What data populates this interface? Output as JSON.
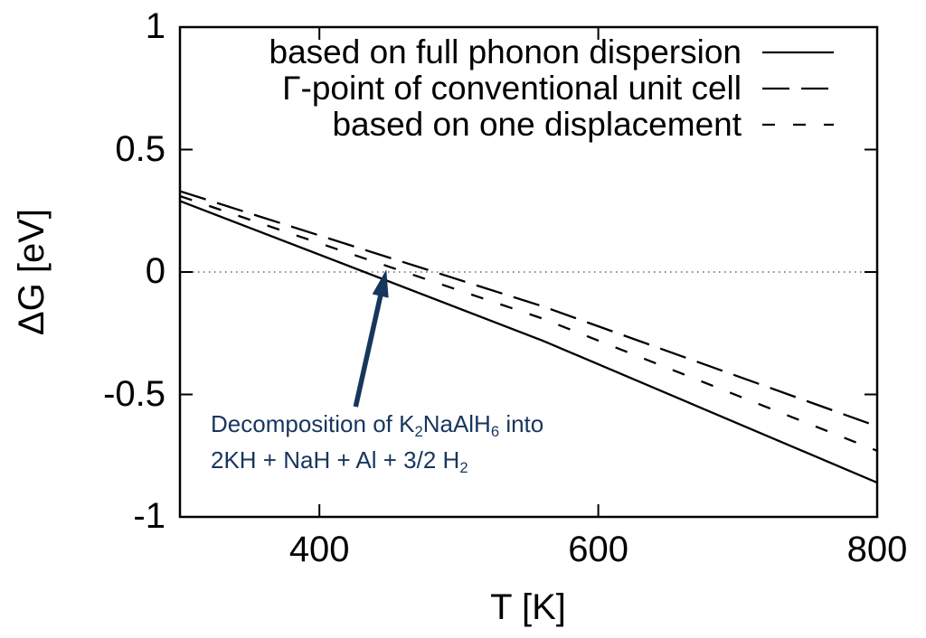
{
  "figure": {
    "background": "#ffffff",
    "axis_color": "#000000",
    "zero_line_color": "#444444"
  },
  "chart_data": {
    "type": "line",
    "title": "",
    "xlabel": "T [K]",
    "ylabel": "ΔG [eV]",
    "xlim": [
      300,
      800
    ],
    "ylim": [
      -1,
      1
    ],
    "xticks": [
      400,
      600,
      800
    ],
    "xtick_labels": [
      "400",
      "600",
      "800"
    ],
    "yticks": [
      1,
      0.5,
      0,
      -0.5,
      -1
    ],
    "ytick_labels": [
      "1",
      "0.5",
      "0",
      "-0.5",
      "-1"
    ],
    "grid": "dotted horizontal line at ΔG = 0 only",
    "legend_position": "top right inside plot, right-aligned labels with line samples",
    "series": [
      {
        "name": "based on full phonon dispersion",
        "style": "solid",
        "color": "#000000",
        "x": [
          300,
          560,
          800
        ],
        "y": [
          0.29,
          -0.28,
          -0.86
        ]
      },
      {
        "name": "Γ-point of conventional unit cell",
        "style": "long-dash",
        "color": "#000000",
        "x": [
          300,
          560,
          800
        ],
        "y": [
          0.33,
          -0.14,
          -0.63
        ]
      },
      {
        "name": "based on one displacement",
        "style": "short-dash",
        "color": "#000000",
        "x": [
          300,
          560,
          800
        ],
        "y": [
          0.31,
          -0.19,
          -0.73
        ]
      }
    ],
    "annotation": {
      "color": "#17365d",
      "line1": [
        {
          "t": "Decomposition of K"
        },
        {
          "t": "2",
          "sub": true
        },
        {
          "t": "NaAlH"
        },
        {
          "t": "6",
          "sub": true
        },
        {
          "t": " into"
        }
      ],
      "line2": [
        {
          "t": "2KH + NaH + Al + 3/2 H"
        },
        {
          "t": "2",
          "sub": true
        }
      ],
      "arrow": {
        "tail": {
          "T": 426,
          "G": -0.55
        },
        "tip": {
          "T": 448,
          "G": 0.01
        }
      }
    }
  }
}
